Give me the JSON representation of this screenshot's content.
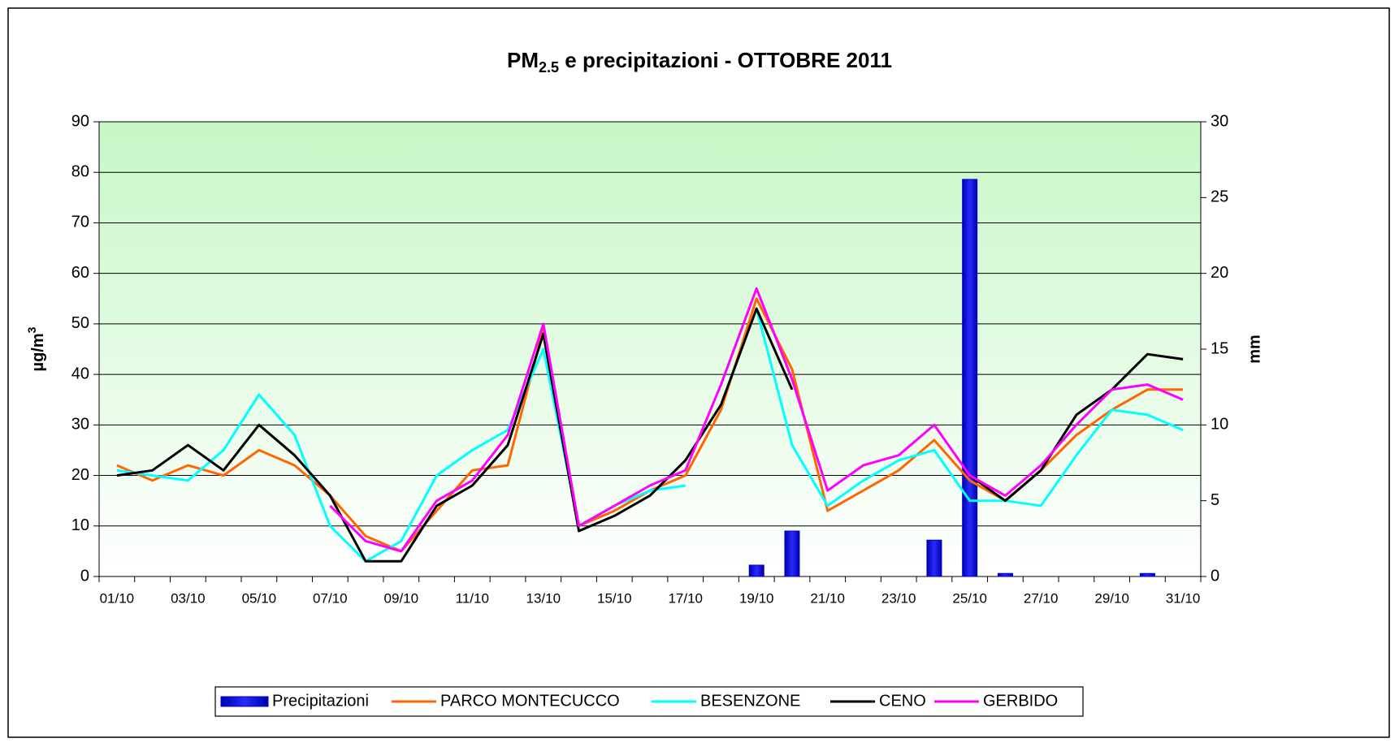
{
  "chart_data": {
    "type": "bar-line",
    "title_main": "PM",
    "title_sub": "2.5",
    "title_rest": " e precipitazioni - OTTOBRE 2011",
    "y_label_main": "µg/m",
    "y_label_sup": "3",
    "y2_label": "mm",
    "categories": [
      "01/10",
      null,
      "03/10",
      null,
      "05/10",
      null,
      "07/10",
      null,
      "09/10",
      null,
      "11/10",
      null,
      "13/10",
      null,
      "15/10",
      null,
      "17/10",
      null,
      "19/10",
      null,
      "21/10",
      null,
      "23/10",
      null,
      "25/10",
      null,
      "27/10",
      null,
      "29/10",
      null,
      "31/10"
    ],
    "ylim": [
      0,
      90
    ],
    "yticks": [
      0,
      10,
      20,
      30,
      40,
      50,
      60,
      70,
      80,
      90
    ],
    "y2lim": [
      0,
      30
    ],
    "y2ticks": [
      0,
      5,
      10,
      15,
      20,
      25,
      30
    ],
    "grid": true,
    "legend": "bottom",
    "series": [
      {
        "name": "Precipitazioni",
        "type": "bar",
        "axis": "y2",
        "color": "#0000cc",
        "values": [
          0,
          0,
          0,
          0,
          0,
          0,
          0,
          0,
          0,
          0,
          0,
          0,
          0,
          0,
          0,
          0,
          0,
          0,
          0.75,
          3,
          0,
          0,
          0,
          2.4,
          26.2,
          0.2,
          0,
          0,
          0,
          0.2,
          0
        ]
      },
      {
        "name": "PARCO MONTECUCCO",
        "type": "line",
        "color": "#ff6600",
        "values": [
          22,
          19,
          22,
          20,
          25,
          22,
          16,
          8,
          5,
          13,
          21,
          22,
          49,
          10,
          13,
          17,
          20,
          33,
          55,
          41,
          13,
          17,
          21,
          27,
          19,
          15,
          21,
          28,
          33,
          37,
          37
        ]
      },
      {
        "name": "BESENZONE",
        "type": "line",
        "color": "#00ffff",
        "values": [
          21,
          20,
          19,
          25,
          36,
          28,
          10,
          3,
          7,
          20,
          25,
          29,
          45,
          10,
          14,
          17,
          18,
          null,
          53,
          26,
          14,
          19,
          23,
          25,
          15,
          15,
          14,
          24,
          33,
          32,
          29
        ]
      },
      {
        "name": "CENO",
        "type": "line",
        "color": "#000000",
        "values": [
          20,
          21,
          26,
          21,
          30,
          24,
          16,
          3,
          3,
          14,
          18,
          26,
          48,
          9,
          12,
          16,
          23,
          34,
          53,
          37,
          null,
          null,
          null,
          null,
          20,
          15,
          21,
          32,
          37,
          44,
          43
        ]
      },
      {
        "name": "GERBIDO",
        "type": "line",
        "color": "#ff00ff",
        "values": [
          null,
          null,
          null,
          null,
          null,
          null,
          14,
          7,
          5,
          15,
          19,
          28,
          50,
          10,
          14,
          18,
          21,
          38,
          57,
          39,
          17,
          22,
          24,
          30,
          20,
          16,
          22,
          30,
          37,
          38,
          35
        ]
      }
    ]
  }
}
